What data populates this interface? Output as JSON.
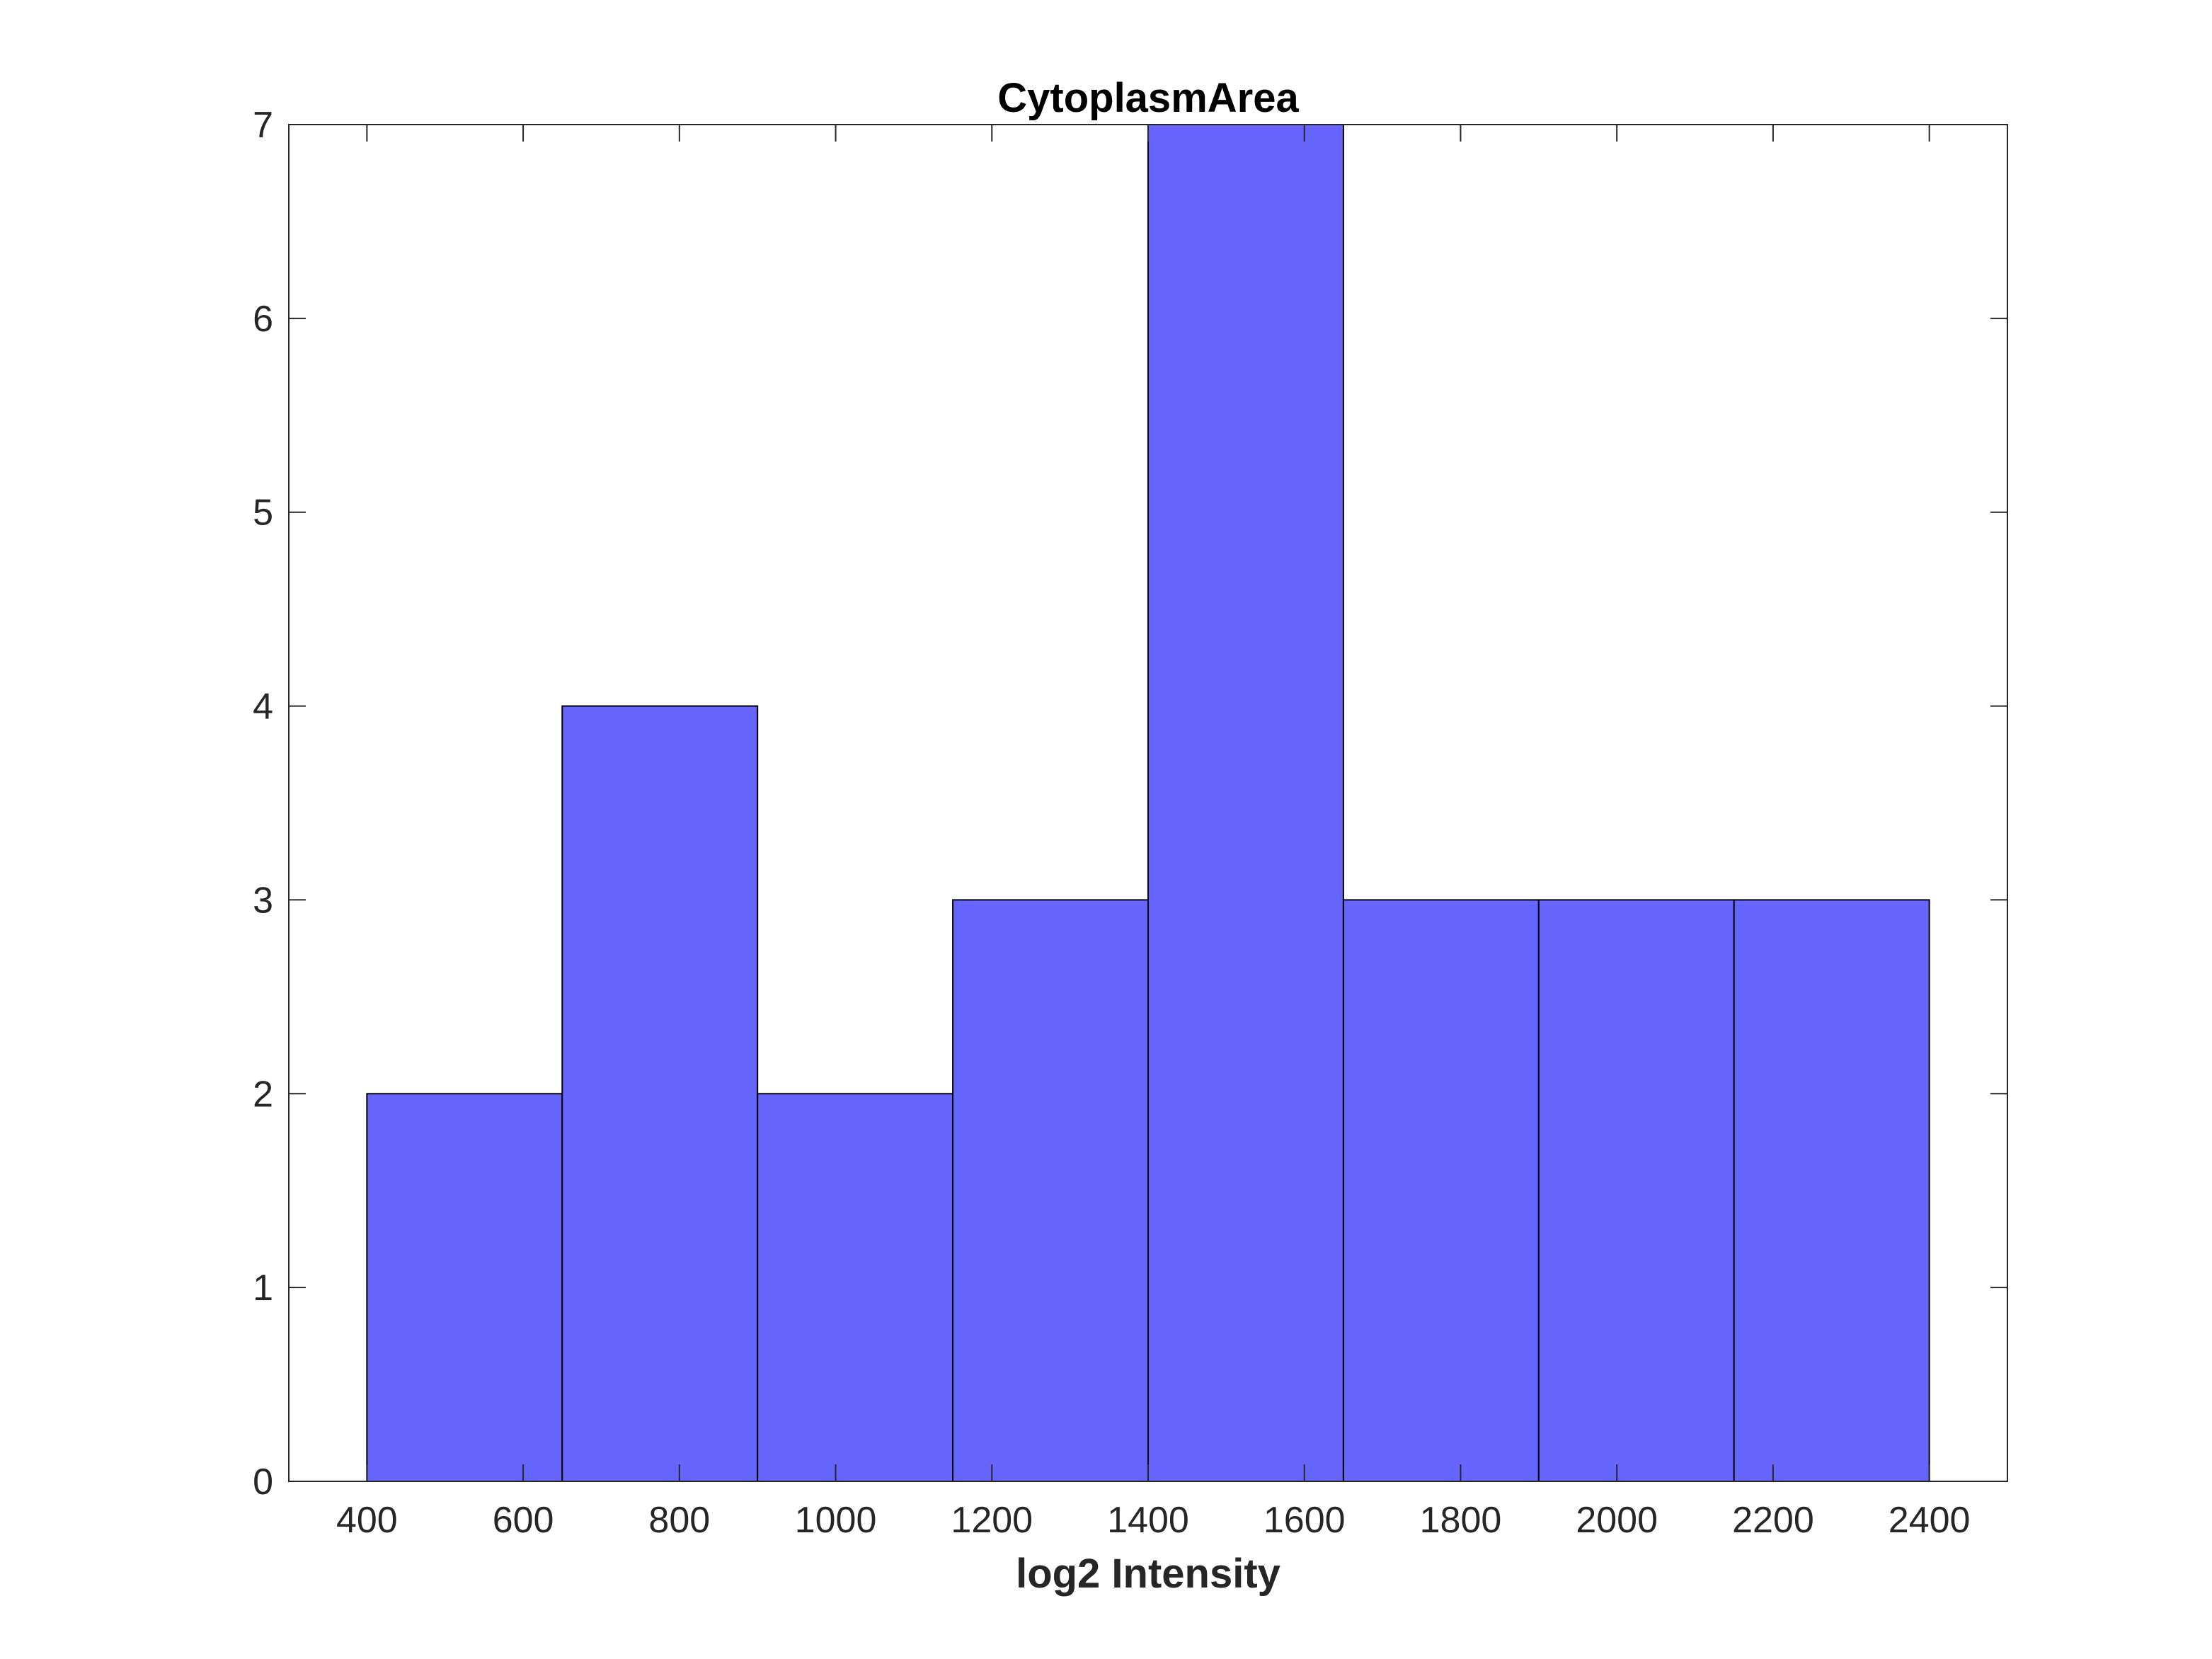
{
  "chart_data": {
    "type": "bar",
    "title": "CytoplasmArea",
    "xlabel": "log2 Intensity",
    "ylabel": "",
    "bin_edges": [
      400,
      650,
      900,
      1150,
      1400,
      1650,
      1900,
      2150,
      2400
    ],
    "values": [
      2,
      4,
      2,
      3,
      7,
      3,
      3,
      3
    ],
    "xlim": [
      300,
      2500
    ],
    "ylim": [
      0,
      7
    ],
    "xticks": [
      400,
      600,
      800,
      1000,
      1200,
      1400,
      1600,
      1800,
      2000,
      2200,
      2400
    ],
    "yticks": [
      0,
      1,
      2,
      3,
      4,
      5,
      6,
      7
    ],
    "grid": false,
    "legend": "none",
    "bar_color": "#6666ff",
    "edge_color": "#000000"
  }
}
